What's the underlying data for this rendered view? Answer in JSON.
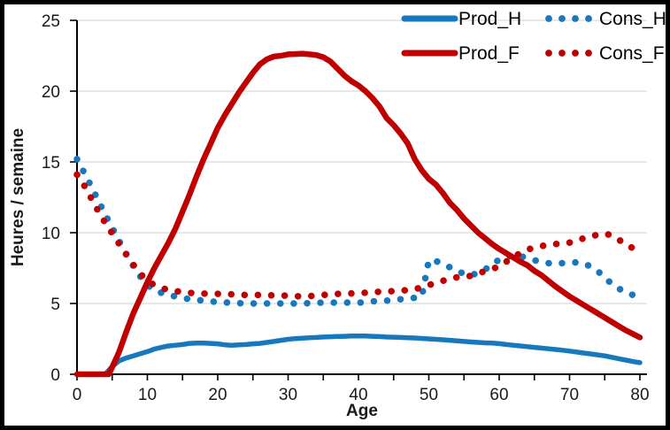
{
  "chart_data": {
    "type": "line",
    "title": "",
    "x_axis": {
      "label": "Age",
      "min": 0,
      "max": 80,
      "major_ticks": [
        0,
        10,
        20,
        30,
        40,
        50,
        60,
        70,
        80
      ],
      "minor_tick_step": 5
    },
    "y_axis": {
      "label": "Heures / semaine",
      "min": 0,
      "max": 25,
      "ticks": [
        0,
        5,
        10,
        15,
        20,
        25
      ]
    },
    "grid": "horizontal",
    "legend": {
      "position": "top-right-inside",
      "rows": [
        [
          "Prod_H",
          "Cons_H"
        ],
        [
          "Prod_F",
          "Cons_F"
        ]
      ]
    },
    "styles": {
      "color_men_blue": "#1878BE",
      "color_women_red": "#C00000",
      "gridline_color": "#D9D9D9",
      "axis_color": "#000000",
      "text_color": "#1a1a1a",
      "frame_color": "#000000",
      "background": "#FFFFFF"
    },
    "series": [
      {
        "name": "Prod_H",
        "style": "solid",
        "color": "#1878BE",
        "points": [
          [
            0,
            0
          ],
          [
            4,
            0
          ],
          [
            5,
            0.55
          ],
          [
            6,
            0.95
          ],
          [
            7,
            1.15
          ],
          [
            8,
            1.3
          ],
          [
            9,
            1.45
          ],
          [
            10,
            1.6
          ],
          [
            11,
            1.78
          ],
          [
            12,
            1.9
          ],
          [
            13,
            2
          ],
          [
            14,
            2.05
          ],
          [
            15,
            2.1
          ],
          [
            16,
            2.18
          ],
          [
            17,
            2.2
          ],
          [
            18,
            2.2
          ],
          [
            19,
            2.18
          ],
          [
            20,
            2.15
          ],
          [
            21,
            2.08
          ],
          [
            22,
            2.05
          ],
          [
            23,
            2.08
          ],
          [
            24,
            2.1
          ],
          [
            25,
            2.15
          ],
          [
            26,
            2.18
          ],
          [
            27,
            2.25
          ],
          [
            28,
            2.32
          ],
          [
            29,
            2.4
          ],
          [
            30,
            2.47
          ],
          [
            31,
            2.52
          ],
          [
            32,
            2.55
          ],
          [
            33,
            2.58
          ],
          [
            34,
            2.6
          ],
          [
            35,
            2.63
          ],
          [
            36,
            2.65
          ],
          [
            37,
            2.67
          ],
          [
            38,
            2.68
          ],
          [
            39,
            2.7
          ],
          [
            40,
            2.7
          ],
          [
            41,
            2.7
          ],
          [
            42,
            2.68
          ],
          [
            43,
            2.66
          ],
          [
            44,
            2.63
          ],
          [
            45,
            2.62
          ],
          [
            46,
            2.6
          ],
          [
            47,
            2.58
          ],
          [
            48,
            2.56
          ],
          [
            49,
            2.53
          ],
          [
            50,
            2.5
          ],
          [
            51,
            2.47
          ],
          [
            52,
            2.44
          ],
          [
            53,
            2.4
          ],
          [
            54,
            2.36
          ],
          [
            55,
            2.32
          ],
          [
            56,
            2.28
          ],
          [
            57,
            2.25
          ],
          [
            58,
            2.22
          ],
          [
            59,
            2.2
          ],
          [
            60,
            2.16
          ],
          [
            61,
            2.1
          ],
          [
            62,
            2.05
          ],
          [
            63,
            2
          ],
          [
            64,
            1.95
          ],
          [
            65,
            1.9
          ],
          [
            66,
            1.85
          ],
          [
            67,
            1.8
          ],
          [
            68,
            1.75
          ],
          [
            69,
            1.7
          ],
          [
            70,
            1.64
          ],
          [
            71,
            1.57
          ],
          [
            72,
            1.5
          ],
          [
            73,
            1.44
          ],
          [
            74,
            1.37
          ],
          [
            75,
            1.3
          ],
          [
            76,
            1.2
          ],
          [
            77,
            1.1
          ],
          [
            78,
            1
          ],
          [
            79,
            0.9
          ],
          [
            80,
            0.82
          ]
        ]
      },
      {
        "name": "Cons_H",
        "style": "dotted",
        "color": "#1878BE",
        "points": [
          [
            0,
            15.2
          ],
          [
            1,
            14.25
          ],
          [
            2,
            13.3
          ],
          [
            3,
            12.3
          ],
          [
            4,
            11.3
          ],
          [
            5,
            10.35
          ],
          [
            6,
            9.4
          ],
          [
            7,
            8.5
          ],
          [
            8,
            7.65
          ],
          [
            9,
            6.9
          ],
          [
            10,
            6.3
          ],
          [
            11,
            5.95
          ],
          [
            12,
            5.75
          ],
          [
            13,
            5.6
          ],
          [
            14,
            5.5
          ],
          [
            15,
            5.4
          ],
          [
            16,
            5.3
          ],
          [
            17,
            5.25
          ],
          [
            18,
            5.2
          ],
          [
            19,
            5.15
          ],
          [
            20,
            5.1
          ],
          [
            22,
            5.05
          ],
          [
            24,
            5
          ],
          [
            26,
            5
          ],
          [
            28,
            5
          ],
          [
            30,
            5
          ],
          [
            32,
            5
          ],
          [
            34,
            5.05
          ],
          [
            36,
            5.06
          ],
          [
            38,
            5.06
          ],
          [
            40,
            5.05
          ],
          [
            41,
            5.1
          ],
          [
            42,
            5.15
          ],
          [
            43,
            5.2
          ],
          [
            44,
            5.2
          ],
          [
            45,
            5.25
          ],
          [
            46,
            5.3
          ],
          [
            47,
            5.35
          ],
          [
            48,
            5.4
          ],
          [
            49,
            5.5
          ],
          [
            50,
            8.05
          ],
          [
            51,
            8
          ],
          [
            52,
            7.8
          ],
          [
            53,
            7.55
          ],
          [
            54,
            7.3
          ],
          [
            55,
            7.1
          ],
          [
            56,
            7
          ],
          [
            57,
            7.15
          ],
          [
            58,
            7.4
          ],
          [
            59,
            7.75
          ],
          [
            60,
            8.1
          ],
          [
            61,
            8.3
          ],
          [
            62,
            8.4
          ],
          [
            63,
            8.35
          ],
          [
            64,
            8.2
          ],
          [
            65,
            8.05
          ],
          [
            66,
            7.95
          ],
          [
            67,
            7.85
          ],
          [
            68,
            7.8
          ],
          [
            69,
            7.85
          ],
          [
            70,
            7.9
          ],
          [
            71,
            7.9
          ],
          [
            72,
            7.85
          ],
          [
            73,
            7.6
          ],
          [
            74,
            7.3
          ],
          [
            75,
            6.8
          ],
          [
            76,
            6.4
          ],
          [
            77,
            6.05
          ],
          [
            78,
            5.8
          ],
          [
            79,
            5.6
          ],
          [
            80,
            5.55
          ]
        ]
      },
      {
        "name": "Prod_F",
        "style": "solid",
        "color": "#C00000",
        "points": [
          [
            0,
            0
          ],
          [
            4.5,
            0
          ],
          [
            5,
            0.5
          ],
          [
            6,
            1.6
          ],
          [
            7,
            3
          ],
          [
            8,
            4.3
          ],
          [
            9,
            5.4
          ],
          [
            10,
            6.5
          ],
          [
            11,
            7.5
          ],
          [
            12,
            8.4
          ],
          [
            13,
            9.3
          ],
          [
            14,
            10.3
          ],
          [
            15,
            11.5
          ],
          [
            16,
            12.7
          ],
          [
            17,
            14
          ],
          [
            18,
            15.2
          ],
          [
            19,
            16.3
          ],
          [
            20,
            17.4
          ],
          [
            21,
            18.3
          ],
          [
            22,
            19.1
          ],
          [
            23,
            19.9
          ],
          [
            24,
            20.6
          ],
          [
            25,
            21.3
          ],
          [
            26,
            21.9
          ],
          [
            27,
            22.25
          ],
          [
            28,
            22.45
          ],
          [
            29,
            22.5
          ],
          [
            30,
            22.6
          ],
          [
            31,
            22.62
          ],
          [
            32,
            22.65
          ],
          [
            33,
            22.6
          ],
          [
            34,
            22.55
          ],
          [
            35,
            22.4
          ],
          [
            36,
            22.1
          ],
          [
            37,
            21.6
          ],
          [
            38,
            21.1
          ],
          [
            39,
            20.7
          ],
          [
            40,
            20.4
          ],
          [
            41,
            20
          ],
          [
            42,
            19.5
          ],
          [
            43,
            18.9
          ],
          [
            44,
            18.1
          ],
          [
            45,
            17.6
          ],
          [
            46,
            17
          ],
          [
            47,
            16.3
          ],
          [
            48,
            15.2
          ],
          [
            49,
            14.4
          ],
          [
            50,
            13.8
          ],
          [
            51,
            13.4
          ],
          [
            52,
            12.8
          ],
          [
            53,
            12.1
          ],
          [
            54,
            11.6
          ],
          [
            55,
            11
          ],
          [
            56,
            10.5
          ],
          [
            57,
            10
          ],
          [
            58,
            9.6
          ],
          [
            59,
            9.2
          ],
          [
            60,
            8.85
          ],
          [
            61,
            8.55
          ],
          [
            62,
            8.25
          ],
          [
            63,
            7.95
          ],
          [
            64,
            7.7
          ],
          [
            65,
            7.3
          ],
          [
            66,
            7
          ],
          [
            67,
            6.6
          ],
          [
            68,
            6.2
          ],
          [
            69,
            5.85
          ],
          [
            70,
            5.5
          ],
          [
            71,
            5.2
          ],
          [
            72,
            4.9
          ],
          [
            73,
            4.6
          ],
          [
            74,
            4.3
          ],
          [
            75,
            4
          ],
          [
            76,
            3.7
          ],
          [
            77,
            3.4
          ],
          [
            78,
            3.1
          ],
          [
            79,
            2.85
          ],
          [
            80,
            2.6
          ]
        ]
      },
      {
        "name": "Cons_F",
        "style": "dotted",
        "color": "#C00000",
        "points": [
          [
            0,
            14.1
          ],
          [
            1,
            13.35
          ],
          [
            2,
            12.45
          ],
          [
            3,
            11.55
          ],
          [
            4,
            10.7
          ],
          [
            5,
            9.95
          ],
          [
            6,
            9.2
          ],
          [
            7,
            8.45
          ],
          [
            8,
            7.75
          ],
          [
            9,
            7.1
          ],
          [
            10,
            6.6
          ],
          [
            11,
            6.3
          ],
          [
            12,
            6.1
          ],
          [
            13,
            5.95
          ],
          [
            14,
            5.88
          ],
          [
            15,
            5.8
          ],
          [
            16,
            5.75
          ],
          [
            18,
            5.7
          ],
          [
            20,
            5.68
          ],
          [
            22,
            5.65
          ],
          [
            24,
            5.6
          ],
          [
            26,
            5.6
          ],
          [
            28,
            5.57
          ],
          [
            30,
            5.55
          ],
          [
            31,
            5.52
          ],
          [
            32,
            5.5
          ],
          [
            33,
            5.52
          ],
          [
            34,
            5.55
          ],
          [
            35,
            5.6
          ],
          [
            36,
            5.65
          ],
          [
            38,
            5.7
          ],
          [
            40,
            5.72
          ],
          [
            42,
            5.8
          ],
          [
            44,
            5.85
          ],
          [
            46,
            5.9
          ],
          [
            48,
            6
          ],
          [
            49,
            6.15
          ],
          [
            50,
            6.3
          ],
          [
            51,
            6.45
          ],
          [
            52,
            6.6
          ],
          [
            53,
            6.75
          ],
          [
            54,
            6.85
          ],
          [
            55,
            6.9
          ],
          [
            56,
            6.95
          ],
          [
            57,
            7.1
          ],
          [
            58,
            7.3
          ],
          [
            59,
            7.45
          ],
          [
            60,
            7.6
          ],
          [
            61,
            7.95
          ],
          [
            62,
            8.3
          ],
          [
            63,
            8.55
          ],
          [
            64,
            8.8
          ],
          [
            65,
            8.95
          ],
          [
            66,
            9.05
          ],
          [
            67,
            9.15
          ],
          [
            68,
            9.2
          ],
          [
            69,
            9.25
          ],
          [
            70,
            9.3
          ],
          [
            71,
            9.45
          ],
          [
            72,
            9.6
          ],
          [
            73,
            9.75
          ],
          [
            74,
            9.85
          ],
          [
            75,
            9.95
          ],
          [
            76,
            9.8
          ],
          [
            77,
            9.5
          ],
          [
            78,
            9.2
          ],
          [
            79,
            8.9
          ],
          [
            80,
            8.7
          ]
        ]
      }
    ]
  }
}
